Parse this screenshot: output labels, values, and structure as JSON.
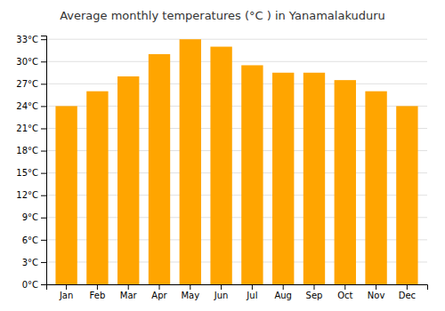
{
  "chart_data": {
    "type": "bar",
    "title": "Average monthly temperatures (°C ) in Yanamalakuduru",
    "categories": [
      "Jan",
      "Feb",
      "Mar",
      "Apr",
      "May",
      "Jun",
      "Jul",
      "Aug",
      "Sep",
      "Oct",
      "Nov",
      "Dec"
    ],
    "values": [
      24,
      26,
      28,
      31,
      33,
      32,
      29.5,
      28.5,
      28.5,
      27.5,
      26,
      24
    ],
    "color": "#FFA500",
    "ylim": [
      0,
      33.5
    ],
    "yticks": [
      {
        "value": 0,
        "label": "0°C"
      },
      {
        "value": 3,
        "label": "3°C"
      },
      {
        "value": 6,
        "label": "6°C"
      },
      {
        "value": 9,
        "label": "9°C"
      },
      {
        "value": 12,
        "label": "12°C"
      },
      {
        "value": 15,
        "label": "15°C"
      },
      {
        "value": 18,
        "label": "18°C"
      },
      {
        "value": 21,
        "label": "21°C"
      },
      {
        "value": 24,
        "label": "24°C"
      },
      {
        "value": 27,
        "label": "27°C"
      },
      {
        "value": 30,
        "label": "30°C"
      },
      {
        "value": 33,
        "label": "33°C"
      }
    ],
    "grid": true
  }
}
